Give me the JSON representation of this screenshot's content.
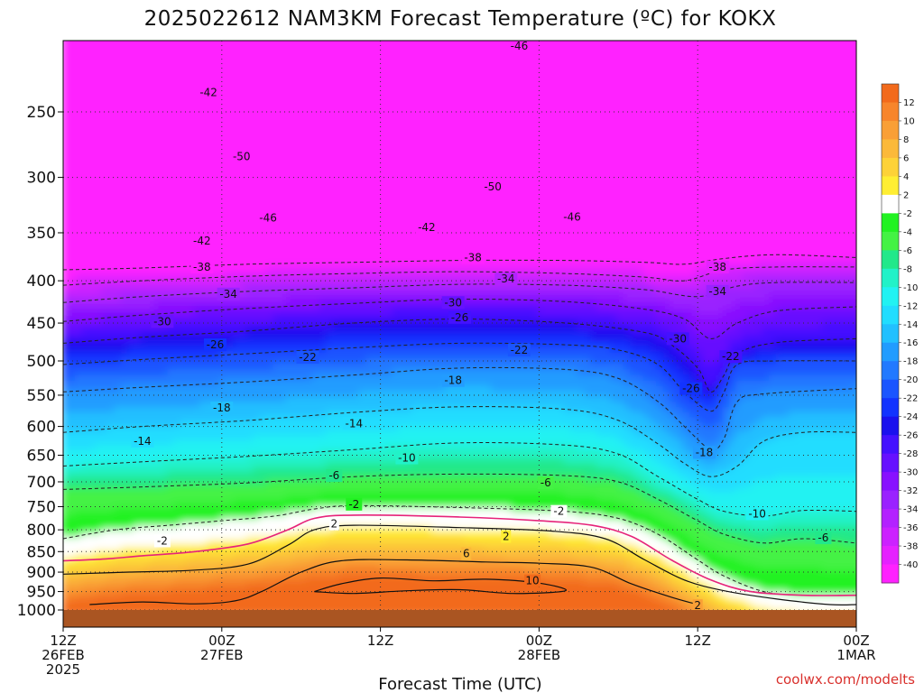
{
  "chart_data": {
    "type": "heatmap",
    "title": "2025022612 NAM3KM Forecast Temperature (ºC) for KOKX",
    "xlabel": "Forecast Time (UTC)",
    "ylabel": "",
    "credit": "coolwx.com/modelts",
    "x_ticks": [
      {
        "hour": 0,
        "lines": [
          "12Z",
          "26FEB",
          "2025"
        ]
      },
      {
        "hour": 12,
        "lines": [
          "00Z",
          "27FEB"
        ]
      },
      {
        "hour": 24,
        "lines": [
          "12Z"
        ]
      },
      {
        "hour": 36,
        "lines": [
          "00Z",
          "28FEB"
        ]
      },
      {
        "hour": 48,
        "lines": [
          "12Z"
        ]
      },
      {
        "hour": 60,
        "lines": [
          "00Z",
          "1MAR"
        ]
      }
    ],
    "xlim_hours": [
      0,
      60
    ],
    "y_scale": "log-pressure",
    "y_ticks_hpa": [
      250,
      300,
      350,
      400,
      450,
      500,
      550,
      600,
      650,
      700,
      750,
      800,
      850,
      900,
      950,
      1000
    ],
    "ylim_hpa": [
      200,
      1013
    ],
    "ground_hpa": 1000,
    "colorbar_ticks": [
      12,
      10,
      8,
      6,
      4,
      2,
      -2,
      -4,
      -6,
      -8,
      -10,
      -12,
      -14,
      -16,
      -18,
      -20,
      -22,
      -24,
      -26,
      -28,
      -30,
      -32,
      -34,
      -36,
      -38,
      -40
    ],
    "colorbar_bands": [
      {
        "lo": 12,
        "hi": 14,
        "color": "#f26a1b"
      },
      {
        "lo": 10,
        "hi": 12,
        "color": "#f7852b"
      },
      {
        "lo": 8,
        "hi": 10,
        "color": "#f99f36"
      },
      {
        "lo": 6,
        "hi": 8,
        "color": "#fbb93a"
      },
      {
        "lo": 4,
        "hi": 6,
        "color": "#fdd238"
      },
      {
        "lo": 2,
        "hi": 4,
        "color": "#ffee33"
      },
      {
        "lo": -2,
        "hi": 2,
        "color": "#ffffff"
      },
      {
        "lo": -4,
        "hi": -2,
        "color": "#22f222"
      },
      {
        "lo": -6,
        "hi": -4,
        "color": "#44f244"
      },
      {
        "lo": -8,
        "hi": -6,
        "color": "#22e88a"
      },
      {
        "lo": -10,
        "hi": -8,
        "color": "#22f2c8"
      },
      {
        "lo": -12,
        "hi": -10,
        "color": "#22f2f2"
      },
      {
        "lo": -14,
        "hi": -12,
        "color": "#22ddff"
      },
      {
        "lo": -16,
        "hi": -14,
        "color": "#22c0ff"
      },
      {
        "lo": -18,
        "hi": -16,
        "color": "#229cff"
      },
      {
        "lo": -20,
        "hi": -18,
        "color": "#2279ff"
      },
      {
        "lo": -22,
        "hi": -20,
        "color": "#1a55ff"
      },
      {
        "lo": -24,
        "hi": -22,
        "color": "#1233ff"
      },
      {
        "lo": -26,
        "hi": -24,
        "color": "#1a11ee"
      },
      {
        "lo": -28,
        "hi": -26,
        "color": "#4411ff"
      },
      {
        "lo": -30,
        "hi": -28,
        "color": "#6611ff"
      },
      {
        "lo": -32,
        "hi": -30,
        "color": "#8811ff"
      },
      {
        "lo": -34,
        "hi": -32,
        "color": "#9a22ff"
      },
      {
        "lo": -36,
        "hi": -34,
        "color": "#b322ff"
      },
      {
        "lo": -38,
        "hi": -36,
        "color": "#cc22ff"
      },
      {
        "lo": -40,
        "hi": -38,
        "color": "#e522ff"
      },
      {
        "lo": -60,
        "hi": -40,
        "color": "#ff22ff"
      }
    ],
    "ground_color": "#aa5522",
    "dashed_contours": [
      {
        "label": "-42",
        "points": [
          [
            0,
            388
          ],
          [
            6,
            386
          ],
          [
            14,
            382
          ],
          [
            22,
            380
          ],
          [
            30,
            378
          ],
          [
            38,
            378
          ],
          [
            44,
            380
          ],
          [
            47,
            382
          ],
          [
            50,
            376
          ],
          [
            54,
            372
          ],
          [
            60,
            375
          ]
        ]
      },
      {
        "label": "-38",
        "points": [
          [
            0,
            405
          ],
          [
            6,
            400
          ],
          [
            14,
            395
          ],
          [
            22,
            392
          ],
          [
            30,
            390
          ],
          [
            38,
            392
          ],
          [
            44,
            396
          ],
          [
            47,
            400
          ],
          [
            50,
            388
          ],
          [
            54,
            385
          ],
          [
            60,
            385
          ]
        ]
      },
      {
        "label": "-34",
        "points": [
          [
            0,
            425
          ],
          [
            6,
            418
          ],
          [
            14,
            412
          ],
          [
            22,
            408
          ],
          [
            30,
            404
          ],
          [
            38,
            405
          ],
          [
            44,
            410
          ],
          [
            48,
            418
          ],
          [
            51,
            406
          ],
          [
            54,
            402
          ],
          [
            60,
            402
          ]
        ]
      },
      {
        "label": "-30",
        "points": [
          [
            0,
            448
          ],
          [
            6,
            440
          ],
          [
            14,
            432
          ],
          [
            22,
            426
          ],
          [
            30,
            421
          ],
          [
            38,
            424
          ],
          [
            44,
            433
          ],
          [
            47,
            445
          ],
          [
            49,
            470
          ],
          [
            51,
            450
          ],
          [
            54,
            435
          ],
          [
            60,
            430
          ]
        ]
      },
      {
        "label": "-26",
        "points": [
          [
            0,
            476
          ],
          [
            6,
            468
          ],
          [
            14,
            460
          ],
          [
            22,
            450
          ],
          [
            30,
            445
          ],
          [
            38,
            450
          ],
          [
            44,
            462
          ],
          [
            46,
            478
          ],
          [
            48,
            510
          ],
          [
            49,
            545
          ],
          [
            50,
            520
          ],
          [
            51,
            490
          ],
          [
            54,
            475
          ],
          [
            60,
            470
          ]
        ]
      },
      {
        "label": "-22",
        "points": [
          [
            0,
            505
          ],
          [
            6,
            498
          ],
          [
            14,
            490
          ],
          [
            22,
            482
          ],
          [
            30,
            476
          ],
          [
            38,
            478
          ],
          [
            42,
            485
          ],
          [
            45,
            505
          ],
          [
            47,
            545
          ],
          [
            49,
            575
          ],
          [
            50,
            545
          ],
          [
            51,
            505
          ],
          [
            54,
            500
          ],
          [
            60,
            500
          ]
        ]
      },
      {
        "label": "-18",
        "points": [
          [
            0,
            545
          ],
          [
            6,
            538
          ],
          [
            14,
            530
          ],
          [
            22,
            520
          ],
          [
            30,
            510
          ],
          [
            38,
            512
          ],
          [
            42,
            525
          ],
          [
            45,
            560
          ],
          [
            47,
            600
          ],
          [
            49,
            640
          ],
          [
            50,
            620
          ],
          [
            51,
            560
          ],
          [
            53,
            548
          ],
          [
            60,
            540
          ]
        ]
      },
      {
        "label": "-14",
        "points": [
          [
            0,
            610
          ],
          [
            6,
            600
          ],
          [
            14,
            590
          ],
          [
            22,
            577
          ],
          [
            30,
            568
          ],
          [
            38,
            572
          ],
          [
            42,
            590
          ],
          [
            45,
            630
          ],
          [
            47,
            665
          ],
          [
            49,
            690
          ],
          [
            51,
            670
          ],
          [
            53,
            625
          ],
          [
            56,
            610
          ],
          [
            60,
            610
          ]
        ]
      },
      {
        "label": "-10",
        "points": [
          [
            0,
            670
          ],
          [
            6,
            662
          ],
          [
            14,
            652
          ],
          [
            22,
            640
          ],
          [
            30,
            628
          ],
          [
            38,
            632
          ],
          [
            42,
            648
          ],
          [
            45,
            690
          ],
          [
            48,
            735
          ],
          [
            50,
            760
          ],
          [
            53,
            770
          ],
          [
            56,
            758
          ],
          [
            60,
            760
          ]
        ]
      },
      {
        "label": "-6",
        "points": [
          [
            0,
            715
          ],
          [
            6,
            710
          ],
          [
            14,
            702
          ],
          [
            22,
            690
          ],
          [
            30,
            685
          ],
          [
            38,
            688
          ],
          [
            42,
            700
          ],
          [
            45,
            735
          ],
          [
            48,
            780
          ],
          [
            50,
            810
          ],
          [
            53,
            830
          ],
          [
            56,
            820
          ],
          [
            60,
            830
          ]
        ]
      },
      {
        "label": "-2",
        "points": [
          [
            0,
            820
          ],
          [
            4,
            800
          ],
          [
            8,
            790
          ],
          [
            12,
            780
          ],
          [
            16,
            770
          ],
          [
            19,
            755
          ],
          [
            22,
            748
          ],
          [
            30,
            752
          ],
          [
            38,
            760
          ],
          [
            42,
            775
          ],
          [
            45,
            810
          ],
          [
            48,
            870
          ],
          [
            50,
            910
          ],
          [
            53,
            950
          ],
          [
            56,
            960
          ],
          [
            60,
            960
          ]
        ]
      }
    ],
    "zero_line": [
      [
        0,
        872
      ],
      [
        3,
        868
      ],
      [
        6,
        860
      ],
      [
        10,
        850
      ],
      [
        14,
        832
      ],
      [
        17,
        800
      ],
      [
        19,
        775
      ],
      [
        22,
        768
      ],
      [
        30,
        772
      ],
      [
        36,
        780
      ],
      [
        40,
        790
      ],
      [
        43,
        815
      ],
      [
        46,
        870
      ],
      [
        49,
        920
      ],
      [
        52,
        950
      ],
      [
        56,
        960
      ],
      [
        60,
        960
      ]
    ],
    "solid_contours": [
      {
        "label": "2",
        "points": [
          [
            0,
            905
          ],
          [
            5,
            900
          ],
          [
            10,
            895
          ],
          [
            14,
            880
          ],
          [
            17,
            835
          ],
          [
            19,
            800
          ],
          [
            22,
            790
          ],
          [
            30,
            795
          ],
          [
            37,
            803
          ],
          [
            41,
            820
          ],
          [
            44,
            870
          ],
          [
            47,
            920
          ],
          [
            50,
            948
          ],
          [
            54,
            970
          ],
          [
            58,
            985
          ],
          [
            60,
            985
          ]
        ]
      },
      {
        "label": "6",
        "points": [
          [
            2,
            985
          ],
          [
            6,
            978
          ],
          [
            10,
            983
          ],
          [
            13,
            975
          ],
          [
            15,
            950
          ],
          [
            18,
            900
          ],
          [
            21,
            872
          ],
          [
            26,
            870
          ],
          [
            32,
            875
          ],
          [
            36,
            878
          ],
          [
            40,
            888
          ],
          [
            43,
            930
          ],
          [
            46,
            965
          ],
          [
            48,
            985
          ]
        ]
      },
      {
        "label": "10",
        "points": [
          [
            19,
            950
          ],
          [
            21,
            930
          ],
          [
            24,
            915
          ],
          [
            28,
            922
          ],
          [
            32,
            918
          ],
          [
            36,
            928
          ],
          [
            38,
            948
          ],
          [
            34,
            955
          ],
          [
            30,
            945
          ],
          [
            26,
            948
          ],
          [
            22,
            955
          ],
          [
            19,
            950
          ]
        ]
      }
    ],
    "contour_labels": [
      {
        "text": "-46",
        "hour": 34.5,
        "hpa": 208
      },
      {
        "text": "-42",
        "hour": 11,
        "hpa": 237
      },
      {
        "text": "-50",
        "hour": 13.5,
        "hpa": 283
      },
      {
        "text": "-50",
        "hour": 32.5,
        "hpa": 308
      },
      {
        "text": "-46",
        "hour": 15.5,
        "hpa": 336
      },
      {
        "text": "-42",
        "hour": 27.5,
        "hpa": 345
      },
      {
        "text": "-46",
        "hour": 38.5,
        "hpa": 335
      },
      {
        "text": "-42",
        "hour": 10.5,
        "hpa": 358
      },
      {
        "text": "-38",
        "hour": 10.5,
        "hpa": 385
      },
      {
        "text": "-38",
        "hour": 31,
        "hpa": 375
      },
      {
        "text": "-38",
        "hour": 49.5,
        "hpa": 385
      },
      {
        "text": "-34",
        "hour": 12.5,
        "hpa": 415
      },
      {
        "text": "-34",
        "hour": 33.5,
        "hpa": 398
      },
      {
        "text": "-34",
        "hour": 49.5,
        "hpa": 412
      },
      {
        "text": "-30",
        "hour": 7.5,
        "hpa": 448
      },
      {
        "text": "-30",
        "hour": 29.5,
        "hpa": 425
      },
      {
        "text": "-30",
        "hour": 46.5,
        "hpa": 470
      },
      {
        "text": "-26",
        "hour": 11.5,
        "hpa": 478
      },
      {
        "text": "-26",
        "hour": 30,
        "hpa": 443
      },
      {
        "text": "-26",
        "hour": 47.5,
        "hpa": 540
      },
      {
        "text": "-22",
        "hour": 18.5,
        "hpa": 495
      },
      {
        "text": "-22",
        "hour": 34.5,
        "hpa": 485
      },
      {
        "text": "-22",
        "hour": 50.5,
        "hpa": 494
      },
      {
        "text": "-18",
        "hour": 12,
        "hpa": 570
      },
      {
        "text": "-18",
        "hour": 29.5,
        "hpa": 528
      },
      {
        "text": "-18",
        "hour": 48.5,
        "hpa": 645
      },
      {
        "text": "-14",
        "hour": 6,
        "hpa": 625
      },
      {
        "text": "-14",
        "hour": 22,
        "hpa": 595
      },
      {
        "text": "-10",
        "hour": 26,
        "hpa": 655
      },
      {
        "text": "-10",
        "hour": 52.5,
        "hpa": 765
      },
      {
        "text": "-6",
        "hour": 20.5,
        "hpa": 688
      },
      {
        "text": "-6",
        "hour": 36.5,
        "hpa": 702
      },
      {
        "text": "-6",
        "hour": 57.5,
        "hpa": 818
      },
      {
        "text": "-2",
        "hour": 22,
        "hpa": 745
      },
      {
        "text": "-2",
        "hour": 37.5,
        "hpa": 760
      },
      {
        "text": "-2",
        "hour": 7.5,
        "hpa": 825
      },
      {
        "text": "2",
        "hour": 20.5,
        "hpa": 787
      },
      {
        "text": "2",
        "hour": 33.5,
        "hpa": 815
      },
      {
        "text": "2",
        "hour": 48,
        "hpa": 988
      },
      {
        "text": "6",
        "hour": 30.5,
        "hpa": 855
      },
      {
        "text": "10",
        "hour": 35.5,
        "hpa": 922
      }
    ],
    "grid": "dotted",
    "legend": "colorbar-right"
  }
}
